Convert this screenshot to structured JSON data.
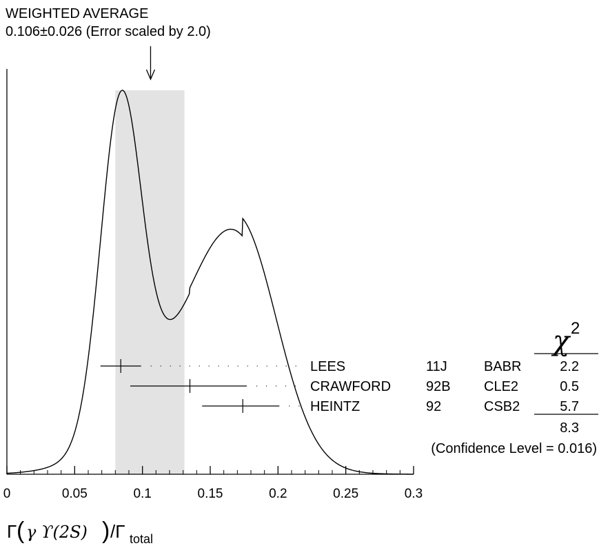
{
  "chart_data": {
    "type": "ideogram",
    "title_line1": "WEIGHTED AVERAGE",
    "title_line2": "0.106±0.026 (Error scaled by 2.0)",
    "weighted_average": 0.106,
    "band": [
      0.08,
      0.131
    ],
    "xlim": [
      0,
      0.3
    ],
    "x_ticks": [
      0,
      0.05,
      0.1,
      0.15,
      0.2,
      0.25,
      0.3
    ],
    "x_tick_labels": [
      "0",
      "0.05",
      "0.1",
      "0.15",
      "0.2",
      "0.25",
      "0.3"
    ],
    "xlabel": {
      "gamma": "Γ",
      "open": "(",
      "inner": "γ ϒ(2S)",
      "close": ")",
      "slash": "/Γ",
      "sub": "total"
    },
    "chi2_header": "χ",
    "chi2_sup": "2",
    "measurements": [
      {
        "name": "LEES",
        "year": "11J",
        "experiment": "BABR",
        "value": 0.084,
        "err_low": 0.015,
        "err_high": 0.015,
        "chi2": "2.2"
      },
      {
        "name": "CRAWFORD",
        "year": "92B",
        "experiment": "CLE2",
        "value": 0.135,
        "err_low": 0.044,
        "err_high": 0.042,
        "chi2": "0.5"
      },
      {
        "name": "HEINTZ",
        "year": "92",
        "experiment": "CSB2",
        "value": 0.174,
        "err_low": 0.03,
        "err_high": 0.027,
        "chi2": "5.7"
      }
    ],
    "chi2_total": "8.3",
    "confidence_level": "(Confidence Level = 0.016)"
  }
}
